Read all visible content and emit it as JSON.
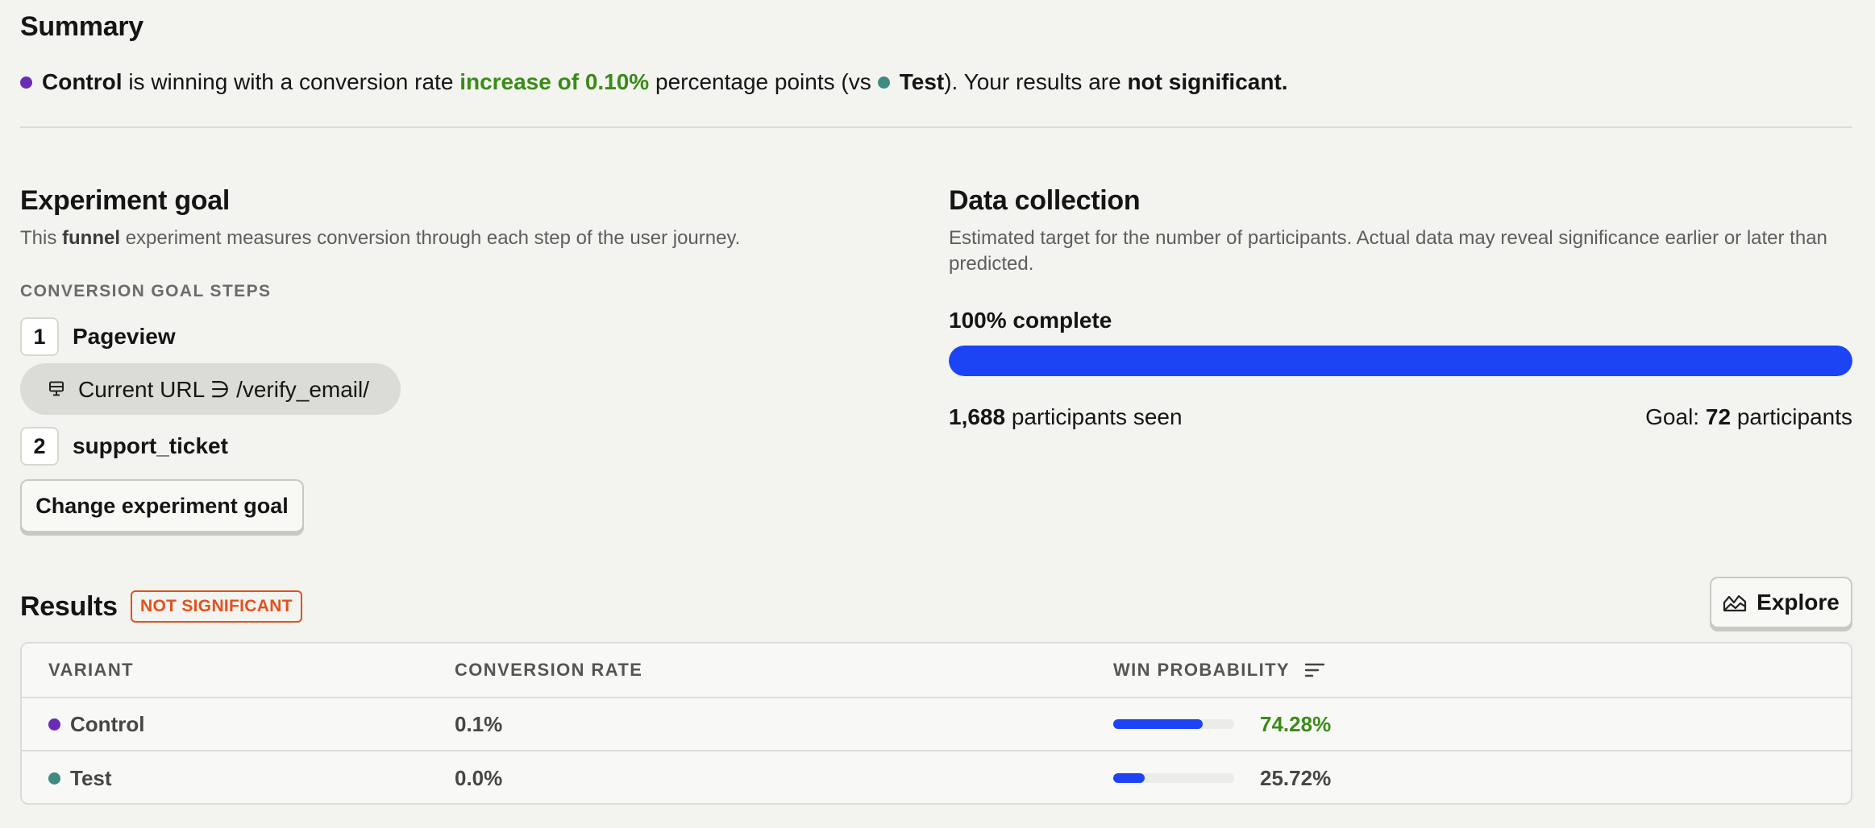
{
  "summary": {
    "title": "Summary",
    "control_name": "Control",
    "text_1": "is winning with a conversion rate",
    "increase": "increase of 0.10%",
    "text_2": "percentage points (vs",
    "test_name": "Test",
    "text_3": "). Your results are",
    "significance": "not significant."
  },
  "experiment_goal": {
    "title": "Experiment goal",
    "desc_1": "This",
    "desc_bold": "funnel",
    "desc_2": "experiment measures conversion through each step of the user journey.",
    "steps_label": "CONVERSION GOAL STEPS",
    "steps": [
      {
        "number": "1",
        "name": "Pageview"
      },
      {
        "number": "2",
        "name": "support_ticket"
      }
    ],
    "filter": {
      "icon": "monitor-icon",
      "text": "Current URL ∋ /verify_email/"
    },
    "change_button": "Change experiment goal"
  },
  "data_collection": {
    "title": "Data collection",
    "description": "Estimated target for the number of participants. Actual data may reveal significance earlier or later than predicted.",
    "progress_label": "100% complete",
    "progress_fraction": 1.0,
    "participants_count": "1,688",
    "participants_text": "participants seen",
    "goal_prefix": "Goal:",
    "goal_count": "72",
    "goal_suffix": "participants"
  },
  "results": {
    "title": "Results",
    "badge": "NOT SIGNIFICANT",
    "explore_button": "Explore",
    "explore_icon": "chart-area-icon",
    "columns": [
      "VARIANT",
      "CONVERSION RATE",
      "WIN PROBABILITY"
    ],
    "rows": [
      {
        "variant": "Control",
        "conversion_rate": "0.1%",
        "win_probability": "74.28%",
        "win_fraction": 0.7428
      },
      {
        "variant": "Test",
        "conversion_rate": "0.0%",
        "win_probability": "25.72%",
        "win_fraction": 0.2572
      }
    ]
  },
  "colors": {
    "control": "#6a2cb4",
    "test": "#3e8b82",
    "accent_blue": "#1c44f5",
    "positive_green": "#3a8b17",
    "warning_orange": "#e4501c",
    "background": "#f3f3ef"
  }
}
